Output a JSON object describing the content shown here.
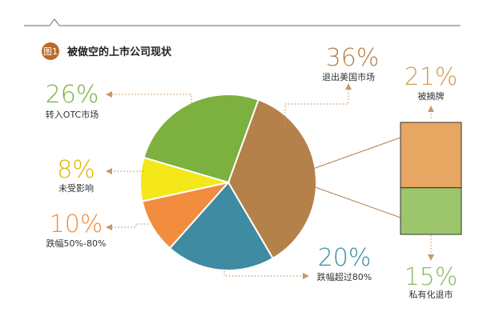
{
  "figure_label": "图1",
  "title": "被做空的上市公司现状",
  "colors": {
    "accent": "#c47d2e",
    "badge": "#b96a2a",
    "dotted": "#c9976a"
  },
  "chart_data": [
    {
      "type": "pie",
      "slices": [
        {
          "label": "退出美国市场",
          "value": 36,
          "display": "36%",
          "color": "#b5814a"
        },
        {
          "label": "跌幅超过80%",
          "value": 20,
          "display": "20%",
          "color": "#3f8ba1"
        },
        {
          "label": "跌幅50%-80%",
          "value": 10,
          "display": "10%",
          "color": "#f28c3e"
        },
        {
          "label": "未受影响",
          "value": 8,
          "display": "8%",
          "color": "#f4e71a"
        },
        {
          "label": "转入OTC市场",
          "value": 26,
          "display": "26%",
          "color": "#7cb03f"
        }
      ]
    },
    {
      "type": "bar",
      "categories": [
        "被摘牌",
        "私有化退市"
      ],
      "values": [
        21,
        15
      ],
      "display": [
        "21%",
        "15%"
      ],
      "colors": [
        "#e7a661",
        "#9dc56b"
      ]
    }
  ]
}
